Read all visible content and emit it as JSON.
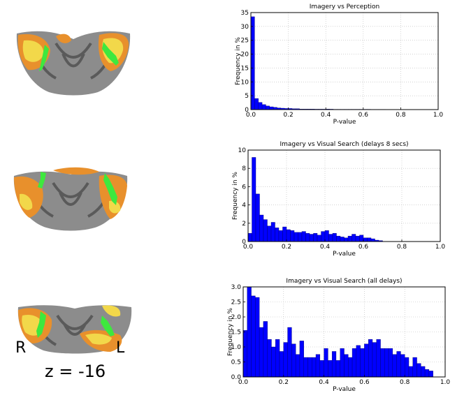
{
  "brain_panel": {
    "hemisphere_left_label": "R",
    "hemisphere_right_label": "L",
    "slice_label": "z = -16",
    "colors": {
      "activation_outer": "#e8902c",
      "activation_inner": "#f2d84a",
      "overlap": "#3ee83e",
      "anatomy": "#8a8a8a"
    }
  },
  "chart_data": [
    {
      "type": "bar",
      "title": "Imagery vs Perception",
      "xlabel": "P-value",
      "ylabel": "Frequency in %",
      "xlim": [
        0.0,
        1.0
      ],
      "ylim": [
        0,
        35
      ],
      "xticks": [
        "0.0",
        "0.2",
        "0.4",
        "0.6",
        "0.8",
        "1.0"
      ],
      "yticks": [
        "0",
        "5",
        "10",
        "15",
        "20",
        "25",
        "30",
        "35"
      ],
      "bin_width": 0.02,
      "bin_starts": [
        0.0,
        0.02,
        0.04,
        0.06,
        0.08,
        0.1,
        0.12,
        0.14,
        0.16,
        0.18,
        0.2,
        0.22,
        0.24,
        0.26,
        0.28,
        0.3,
        0.32,
        0.34,
        0.36,
        0.38,
        0.4,
        0.42,
        0.44,
        0.46,
        0.48,
        0.5,
        0.52,
        0.54,
        0.56,
        0.58,
        0.6,
        0.62,
        0.64,
        0.66,
        0.68,
        0.7,
        0.72,
        0.74,
        0.76,
        0.78
      ],
      "values": [
        33.5,
        4.0,
        2.6,
        1.8,
        1.3,
        1.0,
        0.8,
        0.6,
        0.5,
        0.4,
        0.4,
        0.3,
        0.3,
        0.2,
        0.2,
        0.2,
        0.2,
        0.15,
        0.15,
        0.15,
        0.2,
        0.15,
        0.1,
        0.1,
        0.1,
        0.1,
        0.1,
        0.1,
        0.1,
        0.1,
        0.1,
        0.1,
        0.08,
        0.08,
        0.08,
        0.08,
        0.05,
        0.05,
        0.05,
        0.05
      ],
      "bar_color": "#0000ff",
      "grid": true
    },
    {
      "type": "bar",
      "title": "Imagery vs Visual Search (delays 8 secs)",
      "xlabel": "P-value",
      "ylabel": "Frequency in %",
      "xlim": [
        0.0,
        1.0
      ],
      "ylim": [
        0,
        10
      ],
      "xticks": [
        "0.0",
        "0.2",
        "0.4",
        "0.6",
        "0.8",
        "1.0"
      ],
      "yticks": [
        "0",
        "2",
        "4",
        "6",
        "8",
        "10"
      ],
      "bin_width": 0.02,
      "bin_starts": [
        0.0,
        0.02,
        0.04,
        0.06,
        0.08,
        0.1,
        0.12,
        0.14,
        0.16,
        0.18,
        0.2,
        0.22,
        0.24,
        0.26,
        0.28,
        0.3,
        0.32,
        0.34,
        0.36,
        0.38,
        0.4,
        0.42,
        0.44,
        0.46,
        0.48,
        0.5,
        0.52,
        0.54,
        0.56,
        0.58,
        0.6,
        0.62,
        0.64,
        0.66,
        0.68
      ],
      "values": [
        0.9,
        9.2,
        5.2,
        2.9,
        2.4,
        1.7,
        2.1,
        1.5,
        1.2,
        1.6,
        1.3,
        1.2,
        1.0,
        1.0,
        1.1,
        0.9,
        0.8,
        0.9,
        0.7,
        1.1,
        1.2,
        0.8,
        0.9,
        0.6,
        0.5,
        0.4,
        0.6,
        0.8,
        0.6,
        0.7,
        0.4,
        0.4,
        0.3,
        0.15,
        0.1
      ],
      "bar_color": "#0000ff",
      "grid": true
    },
    {
      "type": "bar",
      "title": "Imagery vs Visual Search (all delays)",
      "xlabel": "P-value",
      "ylabel": "Frequency in %",
      "xlim": [
        0.0,
        1.0
      ],
      "ylim": [
        0.0,
        3.0
      ],
      "xticks": [
        "0.0",
        "0.2",
        "0.4",
        "0.6",
        "0.8",
        "1.0"
      ],
      "yticks": [
        "0.0",
        "0.5",
        "1.0",
        "1.5",
        "2.0",
        "2.5",
        "3.0"
      ],
      "bin_width": 0.02,
      "bin_starts": [
        0.0,
        0.02,
        0.04,
        0.06,
        0.08,
        0.1,
        0.12,
        0.14,
        0.16,
        0.18,
        0.2,
        0.22,
        0.24,
        0.26,
        0.28,
        0.3,
        0.32,
        0.34,
        0.36,
        0.38,
        0.4,
        0.42,
        0.44,
        0.46,
        0.48,
        0.5,
        0.52,
        0.54,
        0.56,
        0.58,
        0.6,
        0.62,
        0.64,
        0.66,
        0.68,
        0.7,
        0.72,
        0.74,
        0.76,
        0.78,
        0.8,
        0.82,
        0.84,
        0.86,
        0.88,
        0.9,
        0.92,
        0.94
      ],
      "values": [
        1.55,
        3.0,
        2.7,
        2.65,
        1.65,
        1.85,
        1.25,
        1.0,
        1.25,
        0.85,
        1.15,
        1.65,
        1.1,
        0.75,
        1.2,
        0.65,
        0.65,
        0.65,
        0.75,
        0.55,
        0.95,
        0.55,
        0.85,
        0.55,
        0.95,
        0.75,
        0.65,
        0.95,
        1.05,
        0.95,
        1.1,
        1.25,
        1.15,
        1.25,
        0.95,
        0.95,
        0.95,
        0.75,
        0.85,
        0.75,
        0.65,
        0.35,
        0.65,
        0.45,
        0.35,
        0.25,
        0.2,
        0.0
      ],
      "bar_color": "#0000ff",
      "grid": true
    }
  ]
}
